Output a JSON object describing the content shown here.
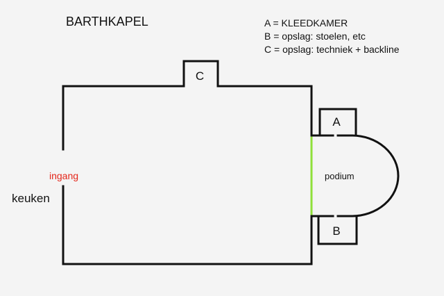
{
  "title": "BARTHKAPEL",
  "legend": [
    "A = KLEEDKAMER",
    "B = opslag: stoelen, etc",
    "C = opslag: techniek + backline"
  ],
  "rooms": {
    "a": "A",
    "b": "B",
    "c": "C"
  },
  "labels": {
    "podium": "podium",
    "entrance": "ingang",
    "kitchen": "keuken"
  },
  "colors": {
    "walls": "#111111",
    "entrance_text": "#e4261a",
    "stage_edge": "#8fe03a",
    "background": "#f4f4f4"
  }
}
